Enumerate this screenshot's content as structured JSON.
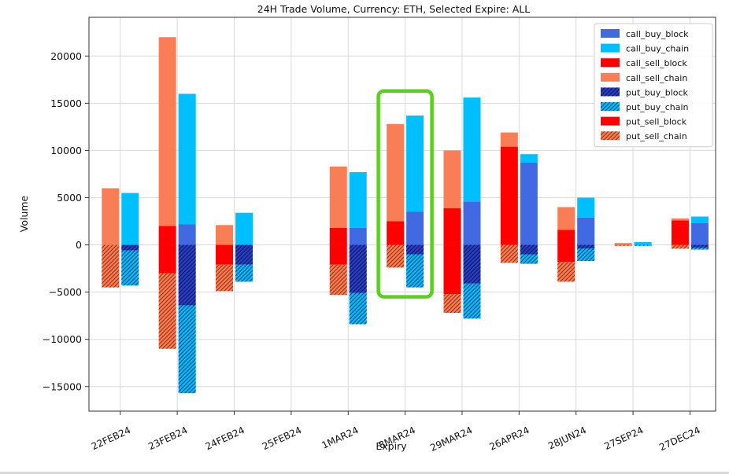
{
  "chart_data": {
    "type": "bar",
    "title": "24H Trade Volume, Currency: ETH, Selected Expire: ALL",
    "xlabel": "Expiry",
    "ylabel": "Volume",
    "ylim": [
      -17600,
      24100
    ],
    "yticks": [
      -15000,
      -10000,
      -5000,
      0,
      5000,
      10000,
      15000,
      20000
    ],
    "grid": true,
    "legend_position": "upper-right",
    "categories": [
      "22FEB24",
      "23FEB24",
      "24FEB24",
      "25FEB24",
      "1MAR24",
      "8MAR24",
      "29MAR24",
      "26APR24",
      "28JUN24",
      "27SEP24",
      "27DEC24"
    ],
    "series": [
      {
        "name": "call_buy_block",
        "bar": "buy",
        "stack": "positive",
        "color": "#4169E1",
        "hatch": false,
        "values": [
          0,
          2200,
          0,
          0,
          1800,
          3500,
          4600,
          8700,
          2900,
          0,
          2300
        ]
      },
      {
        "name": "call_buy_chain",
        "bar": "buy",
        "stack": "positive",
        "color": "#00BFFF",
        "hatch": false,
        "values": [
          5500,
          13800,
          3400,
          0,
          5900,
          10200,
          11000,
          900,
          2100,
          300,
          700
        ]
      },
      {
        "name": "call_sell_block",
        "bar": "sell",
        "stack": "positive",
        "color": "#FF0000",
        "hatch": false,
        "values": [
          0,
          2000,
          0,
          0,
          1800,
          2500,
          3900,
          10400,
          1600,
          0,
          2600
        ]
      },
      {
        "name": "call_sell_chain",
        "bar": "sell",
        "stack": "positive",
        "color": "#FA7E55",
        "hatch": false,
        "values": [
          6000,
          20000,
          2100,
          0,
          6500,
          10300,
          6100,
          1500,
          2400,
          200,
          200
        ]
      },
      {
        "name": "put_buy_block",
        "bar": "buy",
        "stack": "negative",
        "color": "#2B3FC0",
        "hatch": true,
        "hatch_color": "#0A1A70",
        "values": [
          -600,
          -6400,
          -2100,
          0,
          -5100,
          -1000,
          -4100,
          -1000,
          -400,
          0,
          -300
        ]
      },
      {
        "name": "put_buy_chain",
        "bar": "buy",
        "stack": "negative",
        "color": "#00BFFF",
        "hatch": true,
        "hatch_color": "#0B4F8C",
        "values": [
          -3700,
          -9300,
          -1800,
          0,
          -3300,
          -3500,
          -3700,
          -1000,
          -1300,
          -100,
          -200
        ]
      },
      {
        "name": "put_sell_block",
        "bar": "sell",
        "stack": "negative",
        "color": "#FF0000",
        "hatch": false,
        "values": [
          0,
          -3000,
          -2100,
          0,
          -2100,
          0,
          -5200,
          0,
          -1800,
          0,
          0
        ]
      },
      {
        "name": "put_sell_chain",
        "bar": "sell",
        "stack": "negative",
        "color": "#FA7E55",
        "hatch": true,
        "hatch_color": "#A33519",
        "values": [
          -4500,
          -8000,
          -2800,
          0,
          -3200,
          -2400,
          -2000,
          -1900,
          -2100,
          -100,
          -400
        ]
      }
    ],
    "legend_items": [
      "call_buy_block",
      "call_buy_chain",
      "call_sell_block",
      "call_sell_chain",
      "put_buy_block",
      "put_buy_chain",
      "put_sell_block",
      "put_sell_chain"
    ],
    "highlight": {
      "category": "8MAR24",
      "top_value": 16300,
      "bottom_value": -5500,
      "color": "#58D01E"
    }
  },
  "style_colors": {
    "grid": "#d9d9d9",
    "spine": "#333333",
    "legend_border": "#cccccc",
    "legend_bg": "#ffffff"
  }
}
